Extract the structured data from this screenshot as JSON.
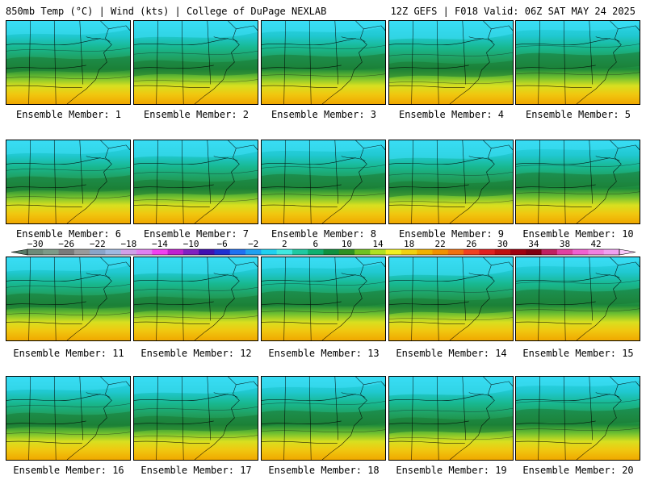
{
  "header": {
    "left": "850mb Temp (°C) | Wind (kts) | College of DuPage NEXLAB",
    "right": "12Z GEFS | F018 Valid: 06Z SAT MAY 24 2025"
  },
  "member_prefix": "Ensemble Member:",
  "members": [
    "1",
    "2",
    "3",
    "4",
    "5",
    "6",
    "7",
    "8",
    "9",
    "10",
    "11",
    "12",
    "13",
    "14",
    "15",
    "16",
    "17",
    "18",
    "19",
    "20"
  ],
  "colorbar": {
    "tick_labels": [
      "−30",
      "−26",
      "−22",
      "−18",
      "−14",
      "−10",
      "−6",
      "−2",
      "2",
      "6",
      "10",
      "14",
      "18",
      "22",
      "26",
      "30",
      "34",
      "38",
      "42"
    ],
    "colors": [
      "#6e8a78",
      "#7d9a88",
      "#7a7a7a",
      "#9a9a9a",
      "#8aa4c8",
      "#a0b8e0",
      "#d0a0e8",
      "#e080f0",
      "#f040f0",
      "#c020d0",
      "#8020c0",
      "#4010b0",
      "#2030d0",
      "#2070f0",
      "#20a0f0",
      "#20d0f0",
      "#40e8e0",
      "#20c8a0",
      "#10b070",
      "#109040",
      "#309020",
      "#70c020",
      "#b0e020",
      "#f0f020",
      "#f0d010",
      "#f0b000",
      "#f09000",
      "#f07010",
      "#f04020",
      "#e02020",
      "#c01010",
      "#a00010",
      "#800010",
      "#c02060",
      "#e040a0",
      "#f060d0",
      "#f080e0",
      "#f0a0f0"
    ]
  }
}
